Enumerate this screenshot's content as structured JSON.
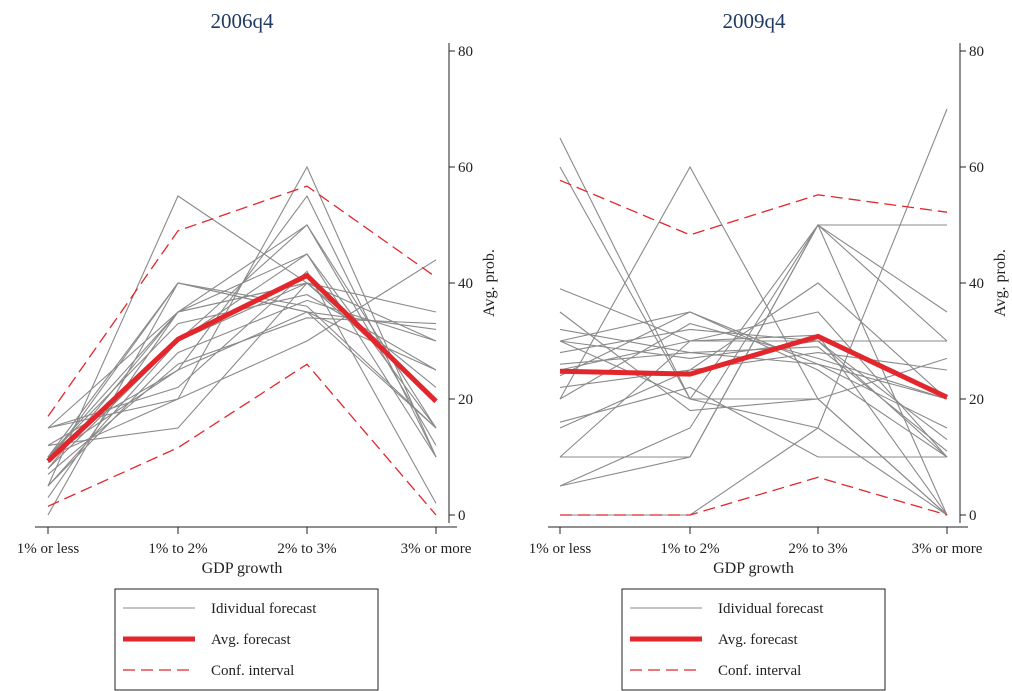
{
  "chart_data": [
    {
      "type": "line",
      "title": "2006q4",
      "xlabel": "GDP growth",
      "ylabel": "Avg. prob.",
      "categories": [
        "1% or less",
        "1% to 2%",
        "2% to 3%",
        "3% or more"
      ],
      "yticks": [
        "0",
        "20",
        "40",
        "60",
        "80"
      ],
      "ylim": [
        0,
        80
      ],
      "legend": "bottom",
      "individual": [
        [
          15,
          20,
          60,
          10
        ],
        [
          5,
          55,
          40,
          20
        ],
        [
          10,
          40,
          35,
          15
        ],
        [
          15,
          35,
          45,
          10
        ],
        [
          10,
          35,
          40,
          30
        ],
        [
          5,
          30,
          50,
          15
        ],
        [
          10,
          25,
          55,
          10
        ],
        [
          8,
          35,
          40,
          20
        ],
        [
          12,
          15,
          40,
          35
        ],
        [
          0,
          40,
          35,
          25
        ],
        [
          10,
          33,
          38,
          25
        ],
        [
          10,
          30,
          45,
          15
        ],
        [
          12,
          25,
          35,
          32
        ],
        [
          8,
          30,
          40,
          22
        ],
        [
          5,
          28,
          37,
          30
        ],
        [
          10,
          20,
          30,
          44
        ],
        [
          7,
          26,
          34,
          33
        ],
        [
          3,
          35,
          50,
          12
        ],
        [
          15,
          22,
          42,
          2
        ],
        [
          9,
          40,
          36,
          15
        ]
      ],
      "series": [
        {
          "name": "Avg. forecast",
          "values": [
            9.3,
            30.3,
            41.3,
            19.6
          ]
        },
        {
          "name": "Conf. interval",
          "values": [
            17,
            49,
            56.7,
            41
          ]
        },
        {
          "name": "Conf. interval",
          "values": [
            1.5,
            11.6,
            26,
            0
          ]
        }
      ]
    },
    {
      "type": "line",
      "title": "2009q4",
      "xlabel": "GDP growth",
      "ylabel": "Avg. prob.",
      "categories": [
        "1% or less",
        "1% to 2%",
        "2% to 3%",
        "3% or more"
      ],
      "yticks": [
        "0",
        "20",
        "40",
        "60",
        "80"
      ],
      "ylim": [
        0,
        80
      ],
      "legend": "bottom",
      "individual": [
        [
          65,
          20,
          15,
          0
        ],
        [
          60,
          20,
          20,
          0
        ],
        [
          20,
          60,
          20,
          0
        ],
        [
          10,
          10,
          50,
          50
        ],
        [
          5,
          15,
          50,
          30
        ],
        [
          0,
          0,
          15,
          70
        ],
        [
          30,
          20,
          50,
          0
        ],
        [
          39,
          30,
          31,
          0
        ],
        [
          30,
          35,
          25,
          10
        ],
        [
          25,
          30,
          35,
          10
        ],
        [
          15,
          25,
          40,
          20
        ],
        [
          10,
          30,
          30,
          30
        ],
        [
          28,
          32,
          30,
          10
        ],
        [
          20,
          33,
          27,
          20
        ],
        [
          30,
          27,
          30,
          13
        ],
        [
          26,
          28,
          26,
          20
        ],
        [
          22,
          25,
          28,
          25
        ],
        [
          35,
          18,
          20,
          27
        ],
        [
          5,
          10,
          50,
          35
        ],
        [
          16,
          22,
          10,
          10
        ],
        [
          32,
          28,
          29,
          11
        ],
        [
          24,
          35,
          26,
          15
        ]
      ],
      "series": [
        {
          "name": "Avg. forecast",
          "values": [
            24.8,
            24.3,
            30.8,
            20.3
          ]
        },
        {
          "name": "Conf. interval",
          "values": [
            57.7,
            48.3,
            55.2,
            52.2
          ]
        },
        {
          "name": "Conf. interval",
          "values": [
            0,
            0,
            6.5,
            0
          ]
        }
      ]
    }
  ],
  "legend_labels": {
    "individual": "Idividual forecast",
    "average": "Avg. forecast",
    "interval": "Conf. interval"
  },
  "colors": {
    "individual": "#8a8a8a",
    "average": "#e3262b",
    "interval": "#e3262b",
    "title": "#1f3b63"
  }
}
